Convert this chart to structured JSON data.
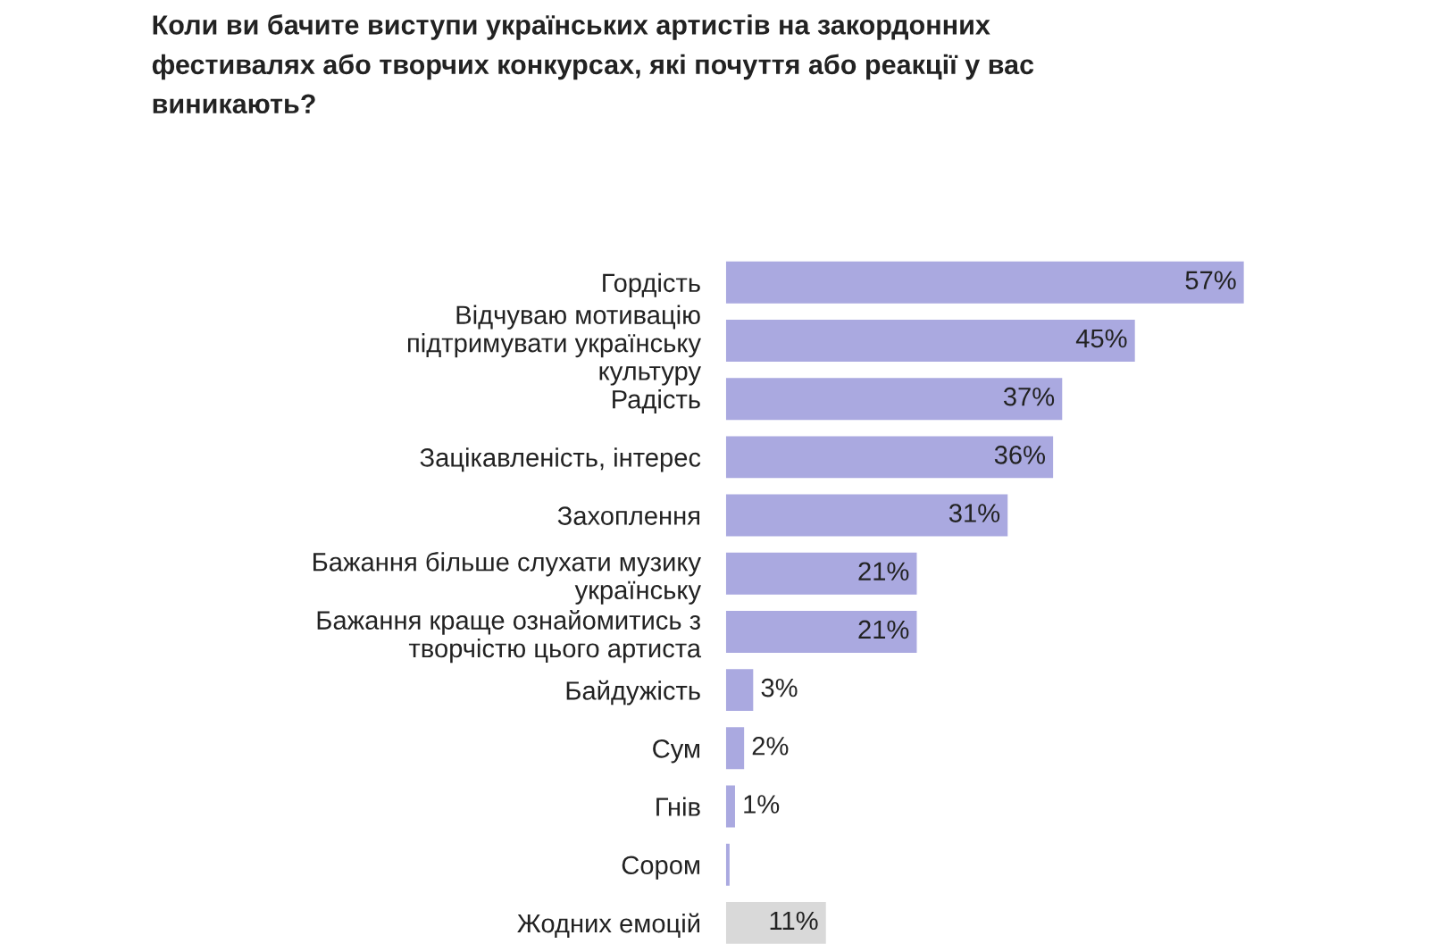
{
  "chart_data": {
    "type": "bar",
    "orientation": "horizontal",
    "title": "Коли ви бачите виступи українських артистів на закордонних\nфестивалях або творчих конкурсах, які почуття або реакції у вас\nвиникають?",
    "categories": [
      "Гордість",
      "Відчуваю мотивацію\nпідтримувати українську\nкультуру",
      "Радість",
      "Зацікавленість, інтерес",
      "Захоплення",
      "Бажання більше слухати музику\nукраїнську",
      "Бажання краще ознайомитись з\nтворчістю цього артиста",
      "Байдужість",
      "Сум",
      "Гнів",
      "Сором",
      "Жодних емоцій"
    ],
    "values": [
      57,
      45,
      37,
      36,
      31,
      21,
      21,
      3,
      2,
      1,
      0.4,
      11
    ],
    "value_labels": [
      "57%",
      "45%",
      "37%",
      "36%",
      "31%",
      "21%",
      "21%",
      "3%",
      "2%",
      "1%",
      null,
      "11%"
    ],
    "colors": [
      "#aaa9e0",
      "#aaa9e0",
      "#aaa9e0",
      "#aaa9e0",
      "#aaa9e0",
      "#aaa9e0",
      "#aaa9e0",
      "#aaa9e0",
      "#aaa9e0",
      "#aaa9e0",
      "#aaa9e0",
      "#d9d9d9"
    ]
  }
}
